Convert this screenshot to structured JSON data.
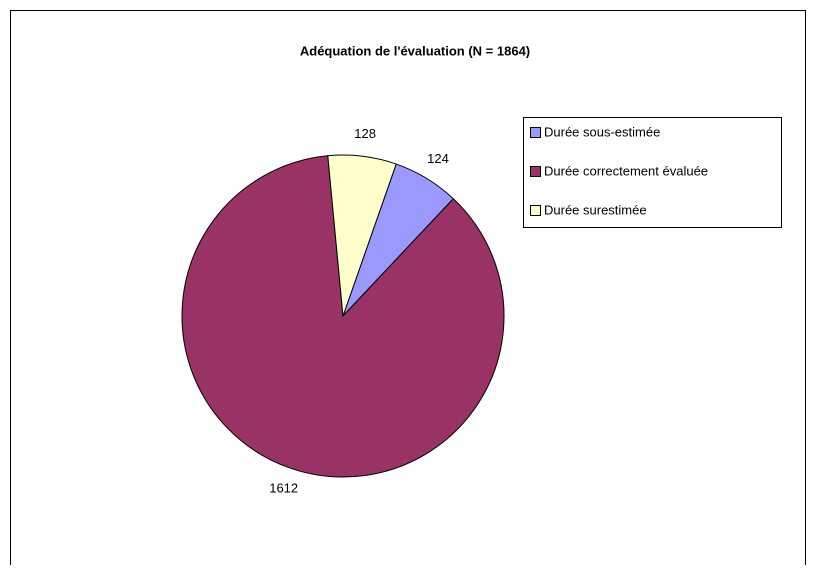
{
  "chart_data": {
    "type": "pie",
    "title": "Adéquation de l'évaluation (N = 1864)",
    "categories": [
      "Durée sous-estimée",
      "Durée correctement évaluée",
      "Durée surestimée"
    ],
    "values": [
      124,
      1612,
      128
    ],
    "colors": [
      "#9999ff",
      "#993366",
      "#ffffcc"
    ],
    "legend": "right"
  }
}
